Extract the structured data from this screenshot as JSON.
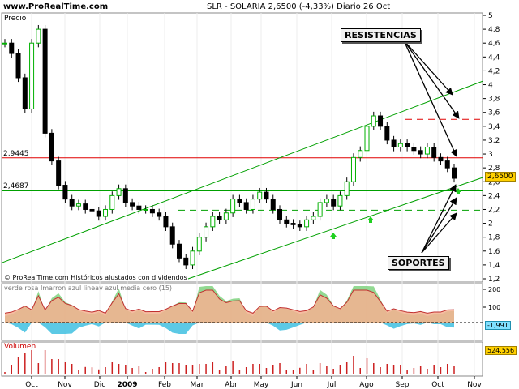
{
  "header": {
    "site": "www.ProRealTime.com",
    "title": "SLR - SOLARIA   2,6500 (-4,33%)   Diario  26 Oct"
  },
  "price_panel": {
    "label": "Precio",
    "credit": "© ProRealTime.com Históricos ajustados con dividendos",
    "level_labels": [
      "2,9445",
      "2,4687"
    ],
    "last_price_box": "2,6500",
    "callout_resist": "RESISTENCIAS",
    "callout_support": "SOPORTES"
  },
  "indicator_panel": {
    "legend": "verde rosa   Imarron azul lineav azul media cero (15)",
    "last_value_box": "-1,991"
  },
  "volume_panel": {
    "label": "Volumen",
    "last_value_box": "524.556"
  },
  "colors": {
    "up_candle": "#00b000",
    "down_candle": "#000000",
    "resistance": "#e00000",
    "support": "#00a000",
    "channel": "#00a000",
    "price_box": "#ffd000",
    "indicator_green": "#7fd27f",
    "indicator_pink": "#f4b090",
    "indicator_blue": "#40c0e0",
    "volume_bars": "#cc2020"
  },
  "chart_data": {
    "type": "candlestick",
    "ticker": "SLR - SOLARIA",
    "last": 2.65,
    "change_pct": -4.33,
    "x_ticks": [
      "Oct",
      "Nov",
      "Dic",
      "2009",
      "Feb",
      "Mar",
      "Abr",
      "May",
      "Jun",
      "Jul",
      "Ago",
      "Sep",
      "Oct",
      "Nov"
    ],
    "ylim": [
      1.2,
      5.0
    ],
    "y_ticks": [
      5,
      4.8,
      4.6,
      4.4,
      4.2,
      4,
      3.8,
      3.6,
      3.4,
      3.2,
      3,
      2.8,
      2.6,
      2.4,
      2.2,
      2,
      1.8,
      1.6,
      1.4,
      1.2
    ],
    "y_tick_labels": [
      "5",
      "4,8",
      "4,6",
      "4,4",
      "4,2",
      "4",
      "3,8",
      "3,6",
      "3,4",
      "3,2",
      "3",
      "2,8",
      "2,6",
      "2,4",
      "2,2",
      "2",
      "1,8",
      "1,6",
      "1,4",
      "1,2"
    ],
    "close_series_approx": [
      [
        "Sep-26",
        4.6
      ],
      [
        "Oct-01",
        4.45
      ],
      [
        "Oct-06",
        4.1
      ],
      [
        "Oct-10",
        3.65
      ],
      [
        "Oct-15",
        4.6
      ],
      [
        "Oct-17",
        4.8
      ],
      [
        "Oct-22",
        3.3
      ],
      [
        "Oct-28",
        2.9
      ],
      [
        "Nov-03",
        2.55
      ],
      [
        "Nov-10",
        2.35
      ],
      [
        "Nov-17",
        2.25
      ],
      [
        "Nov-24",
        2.28
      ],
      [
        "Dic-01",
        2.2
      ],
      [
        "Dic-08",
        2.18
      ],
      [
        "Dic-15",
        2.1
      ],
      [
        "Dic-22",
        2.2
      ],
      [
        "Ene-02",
        2.4
      ],
      [
        "Ene-07",
        2.5
      ],
      [
        "Ene-14",
        2.3
      ],
      [
        "Ene-21",
        2.25
      ],
      [
        "Ene-28",
        2.2
      ],
      [
        "Feb-04",
        2.2
      ],
      [
        "Feb-11",
        2.15
      ],
      [
        "Feb-18",
        2.1
      ],
      [
        "Feb-25",
        1.95
      ],
      [
        "Mar-04",
        1.7
      ],
      [
        "Mar-11",
        1.5
      ],
      [
        "Mar-18",
        1.4
      ],
      [
        "Mar-25",
        1.6
      ],
      [
        "Abr-01",
        1.8
      ],
      [
        "Abr-08",
        1.95
      ],
      [
        "Abr-15",
        2.1
      ],
      [
        "Abr-22",
        2.05
      ],
      [
        "Abr-29",
        2.15
      ],
      [
        "May-06",
        2.35
      ],
      [
        "May-13",
        2.3
      ],
      [
        "May-20",
        2.2
      ],
      [
        "May-27",
        2.35
      ],
      [
        "Jun-03",
        2.45
      ],
      [
        "Jun-10",
        2.35
      ],
      [
        "Jun-17",
        2.2
      ],
      [
        "Jun-24",
        2.05
      ],
      [
        "Jul-01",
        2.0
      ],
      [
        "Jul-08",
        1.98
      ],
      [
        "Jul-15",
        1.95
      ],
      [
        "Jul-22",
        2.05
      ],
      [
        "Jul-29",
        2.1
      ],
      [
        "Ago-05",
        2.3
      ],
      [
        "Ago-12",
        2.35
      ],
      [
        "Ago-19",
        2.25
      ],
      [
        "Ago-26",
        2.4
      ],
      [
        "Ago-31",
        2.6
      ],
      [
        "Sep-03",
        2.95
      ],
      [
        "Sep-07",
        3.05
      ],
      [
        "Sep-10",
        3.4
      ],
      [
        "Sep-14",
        3.55
      ],
      [
        "Sep-17",
        3.4
      ],
      [
        "Sep-21",
        3.2
      ],
      [
        "Sep-25",
        3.1
      ],
      [
        "Sep-29",
        3.15
      ],
      [
        "Oct-02",
        3.1
      ],
      [
        "Oct-06",
        3.05
      ],
      [
        "Oct-09",
        3.0
      ],
      [
        "Oct-13",
        3.1
      ],
      [
        "Oct-16",
        2.95
      ],
      [
        "Oct-20",
        2.9
      ],
      [
        "Oct-23",
        2.8
      ],
      [
        "Oct-26",
        2.65
      ]
    ],
    "horizontal_levels": [
      {
        "value": 2.9445,
        "color": "red",
        "style": "solid"
      },
      {
        "value": 2.4687,
        "color": "green",
        "style": "solid"
      },
      {
        "value": 3.5,
        "color": "red",
        "style": "dashed"
      },
      {
        "value": 2.19,
        "color": "green",
        "style": "dashed"
      },
      {
        "value": 1.37,
        "color": "green",
        "style": "dotted"
      }
    ],
    "channel_lines": [
      {
        "from": [
          "Sep-2008",
          1.43
        ],
        "to": [
          "Nov-2009",
          4.05
        ]
      },
      {
        "from": [
          "Mar-2009",
          1.2
        ],
        "to": [
          "Oct-2009",
          2.6
        ]
      }
    ],
    "volume_last": 524556
  }
}
